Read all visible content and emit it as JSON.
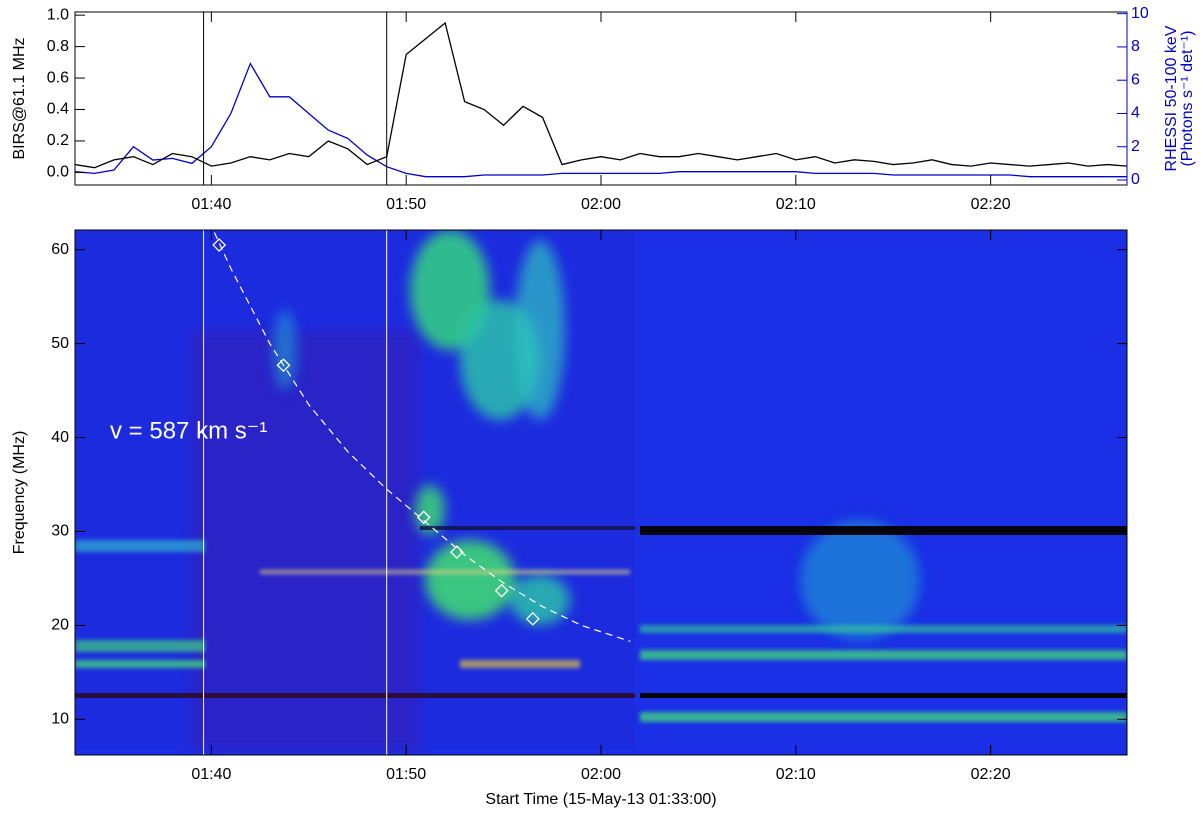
{
  "chart_data": [
    {
      "type": "line",
      "ylabel": "BIRS@61.1 MHz",
      "y2label": "RHESSI 50-100 keV",
      "y2label2": "(Photons s⁻¹ det⁻¹)",
      "xlim": [
        0,
        54
      ],
      "xticks": [
        {
          "value": 7,
          "label": "01:40"
        },
        {
          "value": 17,
          "label": "01:50"
        },
        {
          "value": 27,
          "label": "02:00"
        },
        {
          "value": 37,
          "label": "02:10"
        },
        {
          "value": 47,
          "label": "02:20"
        }
      ],
      "ylim": [
        -0.08,
        1.02
      ],
      "yticks": [
        {
          "value": 0,
          "label": "0.0"
        },
        0.2,
        0.4,
        0.6,
        0.8,
        {
          "value": 1,
          "label": "1.0"
        }
      ],
      "y2lim": [
        -0.3,
        10.1
      ],
      "y2ticks": [
        0,
        2,
        4,
        6,
        8,
        10
      ],
      "y2color": "#0000cc",
      "x": [
        0,
        1,
        2,
        3,
        4,
        5,
        6,
        7,
        8,
        9,
        10,
        11,
        12,
        13,
        14,
        15,
        16,
        17,
        18,
        19,
        20,
        21,
        22,
        23,
        24,
        25,
        26,
        27,
        28,
        29,
        30,
        31,
        32,
        33,
        34,
        35,
        36,
        37,
        38,
        39,
        40,
        41,
        42,
        43,
        44,
        45,
        46,
        47,
        48,
        49,
        50,
        51,
        52,
        53,
        54
      ],
      "series": [
        {
          "color": "#000000",
          "values": [
            0.05,
            0.03,
            0.08,
            0.1,
            0.05,
            0.12,
            0.1,
            0.04,
            0.06,
            0.1,
            0.08,
            0.12,
            0.1,
            0.2,
            0.15,
            0.05,
            0.1,
            0.75,
            0.85,
            0.95,
            0.45,
            0.4,
            0.3,
            0.42,
            0.35,
            0.05,
            0.08,
            0.1,
            0.08,
            0.12,
            0.1,
            0.1,
            0.12,
            0.1,
            0.08,
            0.1,
            0.12,
            0.08,
            0.1,
            0.06,
            0.08,
            0.07,
            0.05,
            0.06,
            0.08,
            0.05,
            0.04,
            0.06,
            0.05,
            0.04,
            0.05,
            0.06,
            0.04,
            0.05,
            0.04
          ]
        },
        {
          "color": "#0000cc",
          "axis": "y2",
          "values": [
            0.5,
            0.4,
            0.6,
            2.0,
            1.2,
            1.3,
            1.0,
            2.0,
            4.0,
            7.0,
            5.0,
            5.0,
            4.0,
            3.0,
            2.5,
            1.5,
            0.8,
            0.4,
            0.2,
            0.2,
            0.2,
            0.3,
            0.3,
            0.3,
            0.3,
            0.4,
            0.4,
            0.4,
            0.4,
            0.4,
            0.4,
            0.5,
            0.5,
            0.5,
            0.5,
            0.5,
            0.5,
            0.5,
            0.4,
            0.4,
            0.4,
            0.4,
            0.3,
            0.3,
            0.3,
            0.3,
            0.3,
            0.3,
            0.3,
            0.2,
            0.2,
            0.2,
            0.2,
            0.2,
            0.2
          ]
        }
      ],
      "vlines": [
        6.6,
        16
      ]
    },
    {
      "type": "spectrogram",
      "xlabel": "Start Time (15-May-13 01:33:00)",
      "ylabel": "Frequency (MHz)",
      "xlim": [
        0,
        54
      ],
      "xticks": [
        {
          "value": 7,
          "label": "01:40"
        },
        {
          "value": 17,
          "label": "01:50"
        },
        {
          "value": 27,
          "label": "02:00"
        },
        {
          "value": 37,
          "label": "02:10"
        },
        {
          "value": 47,
          "label": "02:20"
        }
      ],
      "ylim": [
        6.2,
        62.1
      ],
      "yticks": [
        10,
        20,
        30,
        40,
        50,
        60
      ],
      "points": {
        "x": [
          7.4,
          10.7,
          17.9,
          19.6,
          21.9,
          23.5
        ],
        "y": [
          60.5,
          47.7,
          31.5,
          27.8,
          23.7,
          20.7
        ]
      },
      "fit": {
        "x": [
          6.9,
          8,
          10,
          12,
          14,
          16,
          18,
          20,
          22,
          24,
          26,
          28.5
        ],
        "y": [
          63,
          58,
          50,
          43.5,
          38.5,
          34.5,
          31,
          27.5,
          24.5,
          22,
          20,
          18.3
        ]
      },
      "annotation": "v = 587 km s⁻¹",
      "vlines": [
        6.6,
        16
      ]
    }
  ]
}
